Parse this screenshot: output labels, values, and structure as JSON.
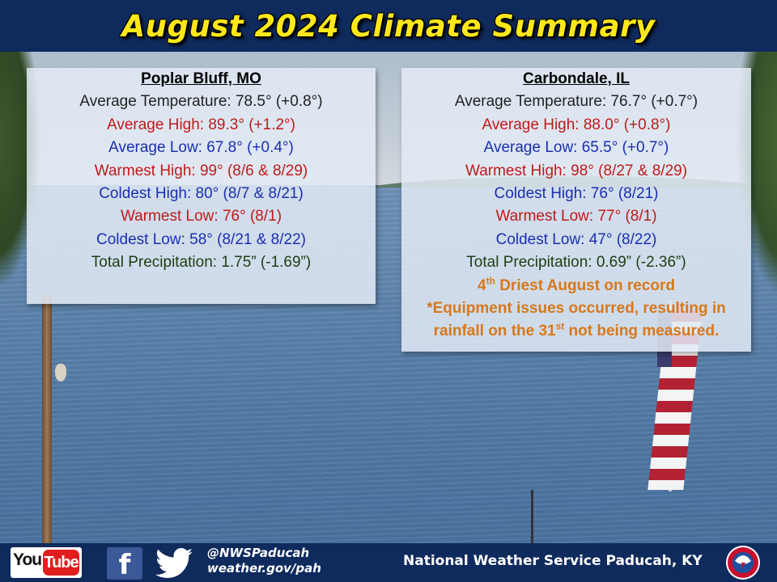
{
  "header": {
    "title": "August 2024 Climate Summary"
  },
  "stations": [
    {
      "name": "Poplar Bluff, MO",
      "average_temperature": "Average Temperature: 78.5° (+0.8°)",
      "average_high": "Average High: 89.3° (+1.2°)",
      "average_low": "Average Low: 67.8° (+0.4°)",
      "warmest_high": "Warmest High: 99° (8/6 & 8/29)",
      "coldest_high": "Coldest High: 80° (8/7 & 8/21)",
      "warmest_low": "Warmest Low: 76° (8/1)",
      "coldest_low": "Coldest Low: 58° (8/21 & 8/22)",
      "total_precipitation": "Total Precipitation: 1.75” (-1.69”)"
    },
    {
      "name": "Carbondale, IL",
      "average_temperature": "Average Temperature: 76.7° (+0.7°)",
      "average_high": "Average High: 88.0° (+0.8°)",
      "average_low": "Average Low: 65.5° (+0.7°)",
      "warmest_high": "Warmest High: 98° (8/27 & 8/29)",
      "coldest_high": "Coldest High: 76° (8/21)",
      "warmest_low": "Warmest Low: 77° (8/1)",
      "coldest_low": "Coldest Low: 47° (8/22)",
      "total_precipitation": "Total Precipitation: 0.69” (-2.36”)",
      "note_rank_number": "4",
      "note_rank_suffix": "th",
      "note_rank_text": " Driest August on record",
      "note_line1": "*Equipment issues occurred, resulting in",
      "note_line2_pre": "rainfall on the 31",
      "note_line2_suffix": "st",
      "note_line2_post": " not being measured."
    }
  ],
  "footer": {
    "youtube_you": "You",
    "youtube_tube": "Tube",
    "facebook_letter": "f",
    "handle": "@NWSPaducah",
    "website": "weather.gov/pah",
    "office_name": "National Weather Service Paducah, KY"
  },
  "icons": {
    "youtube": "youtube-logo",
    "facebook": "facebook-logo",
    "twitter": "twitter-bird-logo",
    "nws": "nws-seal-logo"
  },
  "colors": {
    "title": "#ffe81a",
    "banner": "#0f2a5c",
    "temperature": "#222222",
    "high": "#c01a1a",
    "low": "#1a2fb0",
    "precipitation": "#1f3d14",
    "note": "#d8781a"
  }
}
